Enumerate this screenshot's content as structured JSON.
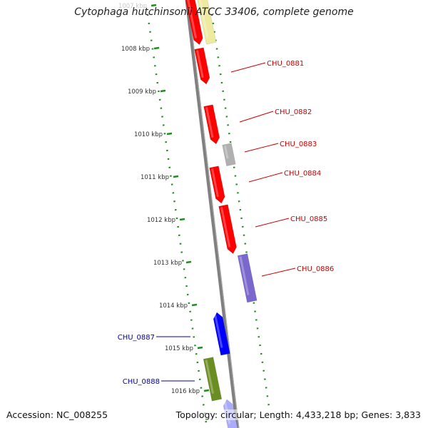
{
  "title": "Cytophaga hutchinsonii ATCC 33406, complete genome",
  "accession": "Accession: NC_008255",
  "summary": "Topology: circular; Length: 4,433,218 bp; Genes: 3,833",
  "colors": {
    "backbone": "#808080",
    "scale_dots": "#228b22",
    "red_label": "#cc0000",
    "blue_label": "#0000aa"
  },
  "scale_ticks": [
    {
      "label": "1007 kbp",
      "faded": true
    },
    {
      "label": "1008 kbp"
    },
    {
      "label": "1009 kbp"
    },
    {
      "label": "1010 kbp"
    },
    {
      "label": "1011 kbp"
    },
    {
      "label": "1012 kbp"
    },
    {
      "label": "1013 kbp"
    },
    {
      "label": "1014 kbp"
    },
    {
      "label": "1015 kbp"
    },
    {
      "label": "1016 kbp"
    }
  ],
  "genes": [
    {
      "label": "CHU_0881",
      "strand": "+",
      "color": "#ff0000",
      "label_color": "#cc0000"
    },
    {
      "label": "CHU_0882",
      "strand": "+",
      "color": "#ff0000",
      "label_color": "#cc0000"
    },
    {
      "label": "CHU_0883",
      "strand": "+",
      "color": "#b0b0b0",
      "label_color": "#cc0000"
    },
    {
      "label": "CHU_0884",
      "strand": "+",
      "color": "#ff0000",
      "label_color": "#cc0000"
    },
    {
      "label": "CHU_0885",
      "strand": "+",
      "color": "#ff0000",
      "label_color": "#cc0000"
    },
    {
      "label": "CHU_0886",
      "strand": "+",
      "color": "#7b68cc",
      "label_color": "#cc0000"
    },
    {
      "label": "CHU_0887",
      "strand": "-",
      "color": "#0000ff",
      "label_color": "#0000aa"
    },
    {
      "label": "CHU_0888",
      "strand": "-",
      "color": "#6b8e23",
      "label_color": "#0000aa"
    }
  ]
}
